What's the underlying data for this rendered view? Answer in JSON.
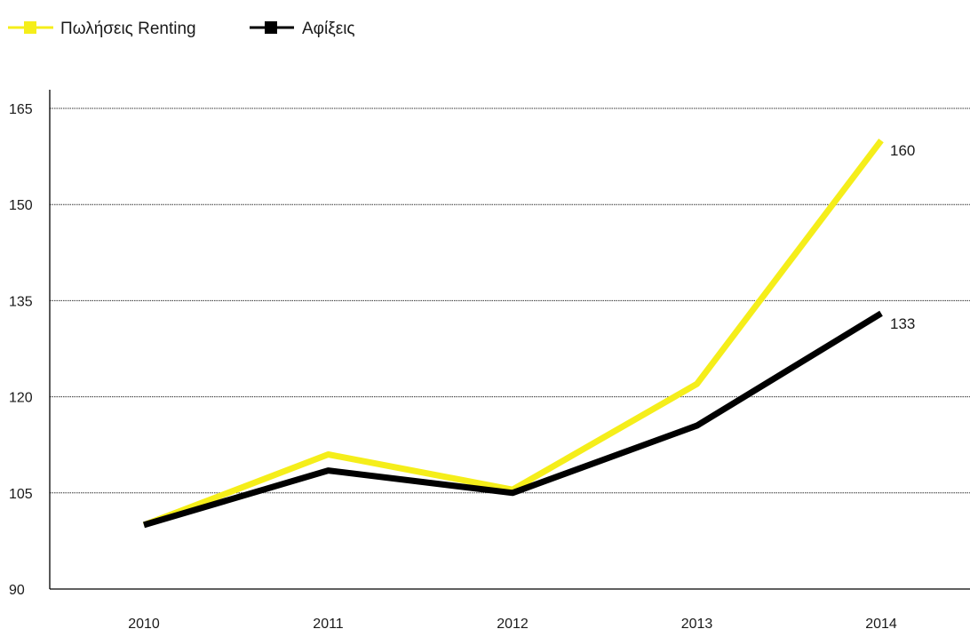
{
  "chart_data": {
    "type": "line",
    "title": "",
    "xlabel": "",
    "ylabel": "",
    "categories": [
      "2010",
      "2011",
      "2012",
      "2013",
      "2014"
    ],
    "ylim": [
      90,
      165
    ],
    "yticks": [
      90,
      105,
      120,
      135,
      150,
      165
    ],
    "grid": true,
    "legend_position": "top-left",
    "series": [
      {
        "name": "Πωλήσεις Renting",
        "color": "#f5ee1a",
        "marker": "square",
        "values": [
          100,
          111,
          105.5,
          122,
          160
        ]
      },
      {
        "name": "Αφίξεις",
        "color": "#000000",
        "marker": "square",
        "values": [
          100,
          108.5,
          105,
          115.5,
          133
        ]
      }
    ],
    "end_labels": [
      {
        "series": "Πωλήσεις Renting",
        "text": "160"
      },
      {
        "series": "Αφίξεις",
        "text": "133"
      }
    ]
  }
}
